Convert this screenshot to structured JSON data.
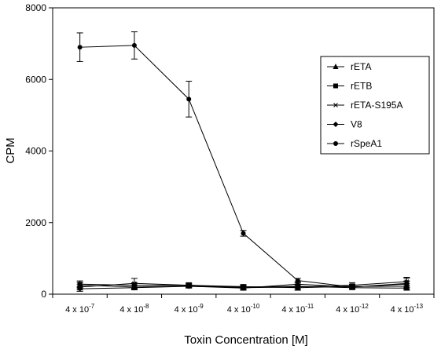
{
  "chart_data": {
    "type": "line",
    "title": "",
    "xlabel": "Toxin Concentration [M]",
    "ylabel": "CPM",
    "ylim": [
      0,
      8000
    ],
    "yticks": [
      0,
      2000,
      4000,
      6000,
      8000
    ],
    "categories": [
      {
        "base": "4 x 10",
        "exp": "-7"
      },
      {
        "base": "4 x 10",
        "exp": "-8"
      },
      {
        "base": "4 x 10",
        "exp": "-9"
      },
      {
        "base": "4 x 10",
        "exp": "-10"
      },
      {
        "base": "4 x 10",
        "exp": "-11"
      },
      {
        "base": "4 x 10",
        "exp": "-12"
      },
      {
        "base": "4 x 10",
        "exp": "-13"
      }
    ],
    "legend_position": "upper-right",
    "series": [
      {
        "name": "rETA",
        "marker": "triangle",
        "values": [
          250,
          200,
          230,
          200,
          220,
          180,
          170
        ],
        "errors": [
          80,
          60,
          50,
          50,
          60,
          50,
          60
        ]
      },
      {
        "name": "rETB",
        "marker": "square",
        "values": [
          280,
          250,
          250,
          210,
          180,
          220,
          220
        ],
        "errors": [
          90,
          70,
          50,
          60,
          70,
          60,
          80
        ]
      },
      {
        "name": "rETA-S195A",
        "marker": "star",
        "values": [
          200,
          300,
          250,
          180,
          200,
          250,
          350
        ],
        "errors": [
          80,
          140,
          70,
          60,
          80,
          70,
          120
        ]
      },
      {
        "name": "V8",
        "marker": "diamond",
        "values": [
          150,
          180,
          220,
          170,
          280,
          200,
          280
        ],
        "errors": [
          70,
          60,
          50,
          60,
          70,
          60,
          90
        ]
      },
      {
        "name": "rSpeA1",
        "marker": "circle",
        "values": [
          6900,
          6950,
          5450,
          1700,
          380,
          200,
          300
        ],
        "errors": [
          400,
          380,
          500,
          80,
          60,
          60,
          150
        ]
      }
    ]
  }
}
